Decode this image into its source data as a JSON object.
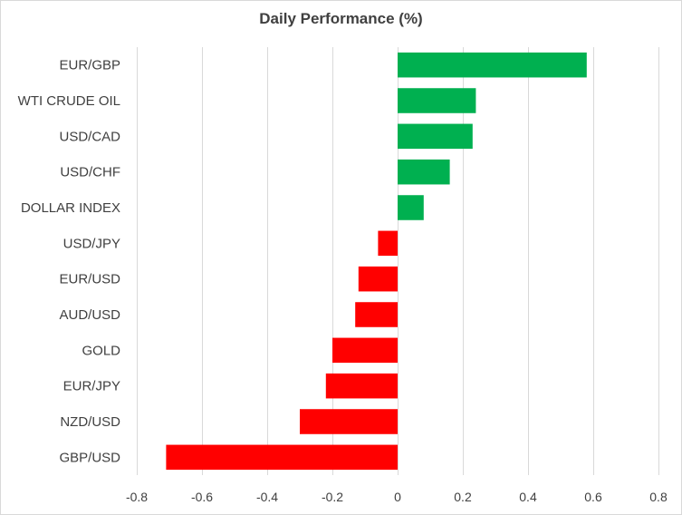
{
  "chart_data": {
    "type": "bar",
    "orientation": "horizontal",
    "title": "Daily Performance (%)",
    "xlabel": "",
    "ylabel": "",
    "categories": [
      "EUR/GBP",
      "WTI CRUDE OIL",
      "USD/CAD",
      "USD/CHF",
      "DOLLAR INDEX",
      "USD/JPY",
      "EUR/USD",
      "AUD/USD",
      "GOLD",
      "EUR/JPY",
      "NZD/USD",
      "GBP/USD"
    ],
    "values": [
      0.58,
      0.24,
      0.23,
      0.16,
      0.08,
      -0.06,
      -0.12,
      -0.13,
      -0.2,
      -0.22,
      -0.3,
      -0.71
    ],
    "xlim": [
      -0.8,
      0.8
    ],
    "xticks": [
      -0.8,
      -0.6,
      -0.4,
      -0.2,
      0,
      0.2,
      0.4,
      0.6,
      0.8
    ],
    "tick_labels": [
      "-0.8",
      "-0.6",
      "-0.4",
      "-0.2",
      "0",
      "0.2",
      "0.4",
      "0.6",
      "0.8"
    ],
    "grid": "vertical",
    "legend": "none",
    "colors": {
      "positive": "#00b050",
      "negative": "#ff0000",
      "grid": "#d9d9d9",
      "text": "#404040"
    }
  }
}
